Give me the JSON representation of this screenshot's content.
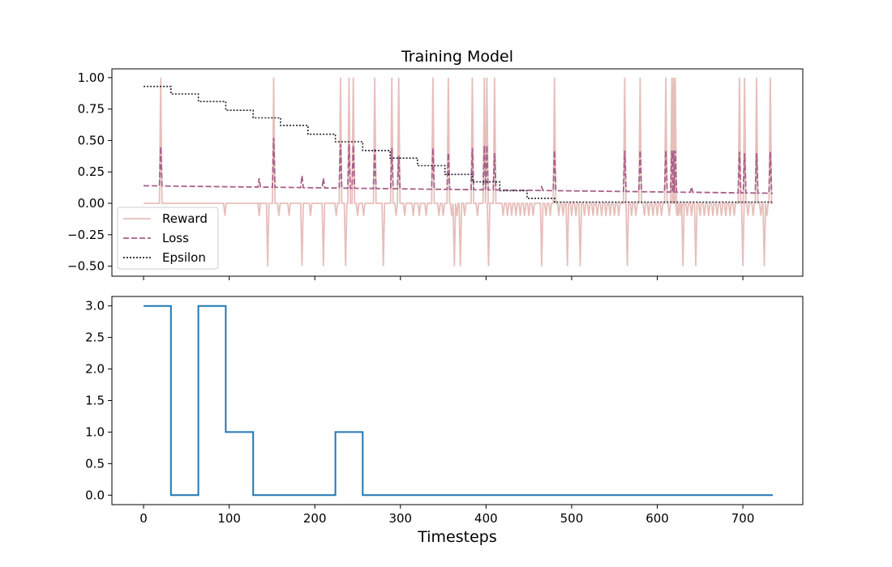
{
  "chart_data": [
    {
      "type": "line",
      "title": "Training Model",
      "xlabel": "",
      "ylabel": "",
      "xlim": [
        -37,
        770
      ],
      "ylim": [
        -0.58,
        1.07
      ],
      "xticks": [
        0,
        100,
        200,
        300,
        400,
        500,
        600,
        700
      ],
      "yticks": [
        1.0,
        0.75,
        0.5,
        0.25,
        0.0,
        -0.25,
        -0.5
      ],
      "ytick_labels": [
        "1.00",
        "0.75",
        "0.50",
        "0.25",
        "0.00",
        "−0.25",
        "−0.50"
      ],
      "show_xtick_labels": false,
      "grid": false,
      "legend": {
        "position": "lower-left",
        "entries": [
          "Reward",
          "Loss",
          "Epsilon"
        ]
      },
      "series": [
        {
          "name": "Reward",
          "color": "#e6bfbb",
          "style": "solid",
          "baseline": 0,
          "spikes": [
            [
              20,
              1.0
            ],
            [
              95,
              -0.1
            ],
            [
              135,
              -0.1
            ],
            [
              135,
              -0.1
            ],
            [
              135,
              -0.1
            ],
            [
              145,
              -0.5
            ],
            [
              152,
              1.0
            ],
            [
              158,
              -0.1
            ],
            [
              170,
              -0.1
            ],
            [
              185,
              -0.5
            ],
            [
              195,
              -0.1
            ],
            [
              210,
              -0.5
            ],
            [
              225,
              -0.1
            ],
            [
              230,
              1.0
            ],
            [
              236,
              -0.5
            ],
            [
              240,
              1.0
            ],
            [
              245,
              1.0
            ],
            [
              250,
              -0.1
            ],
            [
              257,
              -0.1
            ],
            [
              270,
              1.0
            ],
            [
              280,
              -0.5
            ],
            [
              290,
              1.0
            ],
            [
              295,
              -0.1
            ],
            [
              298,
              1.0
            ],
            [
              305,
              -0.1
            ],
            [
              315,
              -0.1
            ],
            [
              322,
              -0.1
            ],
            [
              330,
              -0.1
            ],
            [
              338,
              1.0
            ],
            [
              345,
              -0.1
            ],
            [
              350,
              -0.1
            ],
            [
              356,
              1.0
            ],
            [
              360,
              -0.1
            ],
            [
              363,
              -0.5
            ],
            [
              366,
              -0.1
            ],
            [
              370,
              -0.5
            ],
            [
              375,
              -0.1
            ],
            [
              384,
              1.0
            ],
            [
              390,
              -0.1
            ],
            [
              398,
              1.0
            ],
            [
              401,
              1.0
            ],
            [
              403,
              -0.5
            ],
            [
              410,
              1.0
            ],
            [
              420,
              -0.1
            ],
            [
              425,
              -0.1
            ],
            [
              430,
              -0.1
            ],
            [
              435,
              -0.1
            ],
            [
              440,
              -0.1
            ],
            [
              445,
              -0.1
            ],
            [
              450,
              -0.1
            ],
            [
              455,
              -0.1
            ],
            [
              465,
              -0.5
            ],
            [
              470,
              -0.1
            ],
            [
              475,
              -0.1
            ],
            [
              480,
              1.0
            ],
            [
              485,
              -0.1
            ],
            [
              490,
              -0.1
            ],
            [
              495,
              -0.5
            ],
            [
              500,
              -0.1
            ],
            [
              505,
              -0.1
            ],
            [
              510,
              -0.5
            ],
            [
              515,
              -0.1
            ],
            [
              520,
              -0.1
            ],
            [
              525,
              -0.1
            ],
            [
              530,
              -0.1
            ],
            [
              535,
              -0.1
            ],
            [
              540,
              -0.1
            ],
            [
              545,
              -0.1
            ],
            [
              550,
              -0.1
            ],
            [
              555,
              -0.1
            ],
            [
              562,
              1.0
            ],
            [
              565,
              -0.5
            ],
            [
              570,
              -0.1
            ],
            [
              575,
              -0.1
            ],
            [
              580,
              1.0
            ],
            [
              585,
              -0.1
            ],
            [
              590,
              -0.1
            ],
            [
              595,
              -0.1
            ],
            [
              600,
              -0.1
            ],
            [
              605,
              -0.1
            ],
            [
              610,
              1.0
            ],
            [
              614,
              -0.1
            ],
            [
              617,
              1.0
            ],
            [
              619,
              1.0
            ],
            [
              621,
              1.0
            ],
            [
              623,
              -0.1
            ],
            [
              625,
              -0.1
            ],
            [
              628,
              -0.1
            ],
            [
              630,
              -0.5
            ],
            [
              635,
              -0.1
            ],
            [
              640,
              -0.1
            ],
            [
              645,
              -0.5
            ],
            [
              650,
              -0.1
            ],
            [
              655,
              -0.1
            ],
            [
              660,
              -0.1
            ],
            [
              665,
              -0.1
            ],
            [
              670,
              -0.1
            ],
            [
              675,
              -0.1
            ],
            [
              680,
              -0.1
            ],
            [
              685,
              -0.1
            ],
            [
              690,
              -0.1
            ],
            [
              696,
              1.0
            ],
            [
              700,
              -0.5
            ],
            [
              702,
              1.0
            ],
            [
              706,
              -0.1
            ],
            [
              712,
              -0.1
            ],
            [
              716,
              1.0
            ],
            [
              721,
              -0.1
            ],
            [
              725,
              -0.5
            ],
            [
              728,
              -0.1
            ],
            [
              732,
              1.0
            ]
          ],
          "x_end": 735
        },
        {
          "name": "Loss",
          "color": "#a86089",
          "style": "dashed",
          "baseline_start": 0.14,
          "baseline_end": 0.08,
          "spikes": [
            [
              20,
              0.45
            ],
            [
              135,
              0.2
            ],
            [
              152,
              0.52
            ],
            [
              185,
              0.22
            ],
            [
              210,
              0.2
            ],
            [
              230,
              0.47
            ],
            [
              240,
              0.47
            ],
            [
              245,
              0.46
            ],
            [
              270,
              0.43
            ],
            [
              290,
              0.44
            ],
            [
              298,
              0.38
            ],
            [
              338,
              0.44
            ],
            [
              356,
              0.4
            ],
            [
              384,
              0.44
            ],
            [
              398,
              0.46
            ],
            [
              401,
              0.46
            ],
            [
              410,
              0.4
            ],
            [
              465,
              0.13
            ],
            [
              480,
              0.42
            ],
            [
              562,
              0.42
            ],
            [
              580,
              0.42
            ],
            [
              610,
              0.42
            ],
            [
              617,
              0.42
            ],
            [
              619,
              0.42
            ],
            [
              621,
              0.42
            ],
            [
              640,
              0.13
            ],
            [
              696,
              0.41
            ],
            [
              702,
              0.4
            ],
            [
              716,
              0.4
            ],
            [
              732,
              0.41
            ]
          ],
          "x_end": 735
        },
        {
          "name": "Epsilon",
          "color": "#222233",
          "style": "dotted",
          "steps": [
            [
              0,
              0.93
            ],
            [
              32,
              0.87
            ],
            [
              64,
              0.81
            ],
            [
              96,
              0.74
            ],
            [
              128,
              0.68
            ],
            [
              160,
              0.62
            ],
            [
              192,
              0.55
            ],
            [
              224,
              0.49
            ],
            [
              256,
              0.42
            ],
            [
              288,
              0.36
            ],
            [
              320,
              0.3
            ],
            [
              352,
              0.23
            ],
            [
              384,
              0.17
            ],
            [
              416,
              0.1
            ],
            [
              448,
              0.04
            ],
            [
              480,
              0.01
            ]
          ],
          "x_end": 735
        }
      ]
    },
    {
      "type": "line",
      "title": "",
      "xlabel": "Timesteps",
      "ylabel": "",
      "xlim": [
        -37,
        770
      ],
      "ylim": [
        -0.15,
        3.15
      ],
      "xticks": [
        0,
        100,
        200,
        300,
        400,
        500,
        600,
        700
      ],
      "xtick_labels": [
        "0",
        "100",
        "200",
        "300",
        "400",
        "500",
        "600",
        "700"
      ],
      "yticks": [
        0.0,
        0.5,
        1.0,
        1.5,
        2.0,
        2.5,
        3.0
      ],
      "ytick_labels": [
        "0.0",
        "0.5",
        "1.0",
        "1.5",
        "2.0",
        "2.5",
        "3.0"
      ],
      "grid": false,
      "series": [
        {
          "name": "",
          "color": "#1f77b4",
          "style": "solid",
          "x": [
            0,
            32,
            32,
            64,
            64,
            96,
            96,
            128,
            128,
            224,
            224,
            256,
            256,
            735
          ],
          "y": [
            3,
            3,
            0,
            0,
            3,
            3,
            1,
            1,
            0,
            0,
            1,
            1,
            0,
            0
          ]
        }
      ]
    }
  ]
}
